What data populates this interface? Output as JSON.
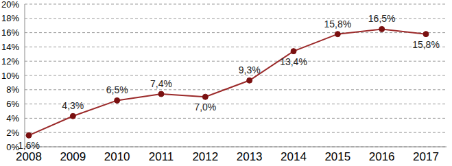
{
  "chart_data": {
    "type": "line",
    "categories": [
      "2008",
      "2009",
      "2010",
      "2011",
      "2012",
      "2013",
      "2014",
      "2015",
      "2016",
      "2017"
    ],
    "values": [
      1.6,
      4.3,
      6.5,
      7.4,
      7.0,
      9.3,
      13.4,
      15.8,
      16.5,
      15.8
    ],
    "value_labels": [
      "1,6%",
      "4,3%",
      "6,5%",
      "7,4%",
      "7,0%",
      "9,3%",
      "13,4%",
      "15,8%",
      "16,5%",
      "15,8%"
    ],
    "color": "#9b2a2a",
    "marker": "circle",
    "ylim": [
      0,
      20
    ],
    "yticks": [
      {
        "value": 0,
        "label": "0%"
      },
      {
        "value": 2,
        "label": "2%"
      },
      {
        "value": 4,
        "label": "4%"
      },
      {
        "value": 6,
        "label": "6%"
      },
      {
        "value": 8,
        "label": "8%"
      },
      {
        "value": 10,
        "label": "10%"
      },
      {
        "value": 12,
        "label": "12%"
      },
      {
        "value": 14,
        "label": "14%"
      },
      {
        "value": 16,
        "label": "16%"
      },
      {
        "value": 18,
        "label": "18%"
      },
      {
        "value": 20,
        "label": "20%"
      }
    ],
    "grid": true,
    "data_labels": true
  }
}
